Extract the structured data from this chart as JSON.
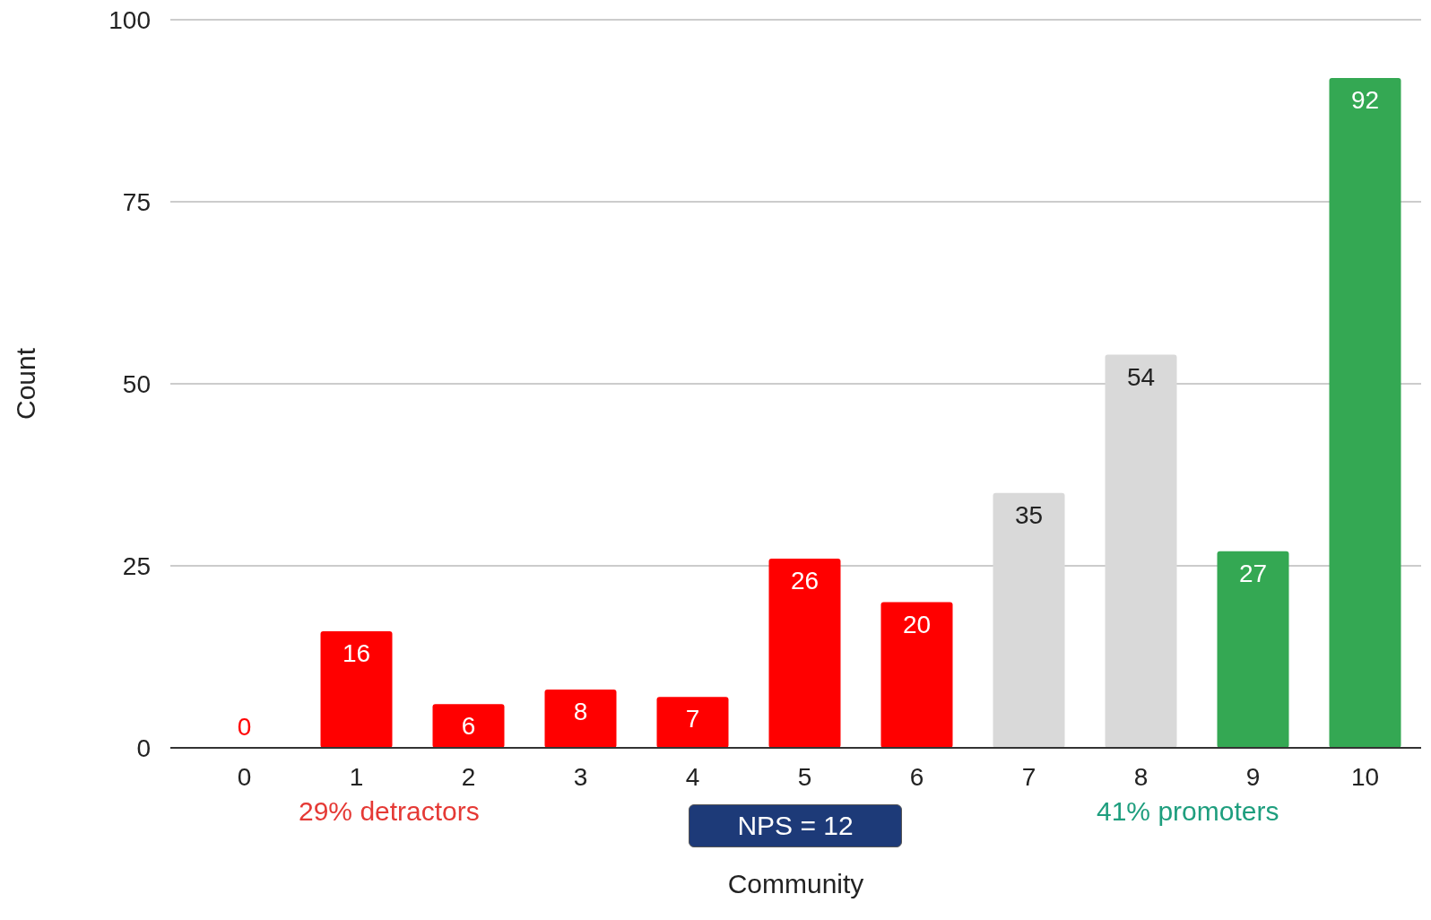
{
  "chart_data": {
    "type": "bar",
    "xlabel": "Community",
    "ylabel": "Count",
    "categories": [
      "0",
      "1",
      "2",
      "3",
      "4",
      "5",
      "6",
      "7",
      "8",
      "9",
      "10"
    ],
    "values": [
      0,
      16,
      6,
      8,
      7,
      26,
      20,
      35,
      54,
      27,
      92
    ],
    "colors": [
      "#ff0000",
      "#ff0000",
      "#ff0000",
      "#ff0000",
      "#ff0000",
      "#ff0000",
      "#ff0000",
      "#d9d9d9",
      "#d9d9d9",
      "#34a853",
      "#34a853"
    ],
    "ylim": [
      0,
      100
    ],
    "yticks": [
      0,
      25,
      50,
      75,
      100
    ],
    "grid": "y",
    "data_labels": true,
    "annotations": [
      "29% detractors",
      "NPS = 12",
      "41% promoters"
    ]
  }
}
